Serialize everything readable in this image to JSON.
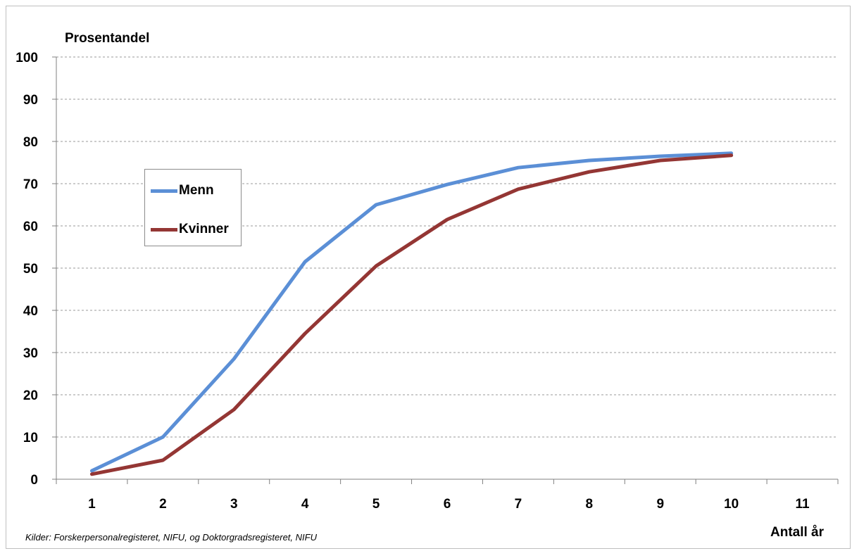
{
  "chart_data": {
    "type": "line",
    "ylabel": "Prosentandel",
    "xlabel": "Antall år",
    "x": [
      1,
      2,
      3,
      4,
      5,
      6,
      7,
      8,
      9,
      10,
      11
    ],
    "ylim": [
      0,
      100
    ],
    "yticks": [
      0,
      10,
      20,
      30,
      40,
      50,
      60,
      70,
      80,
      90,
      100
    ],
    "grid": "horizontal dashed",
    "legend": "left-middle",
    "series": [
      {
        "name": "Menn",
        "color": "#5b8fd6",
        "values": [
          2,
          10,
          28.5,
          51.5,
          65,
          69.8,
          73.8,
          75.5,
          76.5,
          77.2,
          null
        ]
      },
      {
        "name": "Kvinner",
        "color": "#943634",
        "values": [
          1.2,
          4.5,
          16.5,
          34.5,
          50.5,
          61.5,
          68.7,
          72.8,
          75.5,
          76.7,
          null
        ]
      }
    ]
  },
  "source_note": "Kilder: Forskerpersonalregisteret, NIFU, og Doktorgradsregisteret, NIFU"
}
